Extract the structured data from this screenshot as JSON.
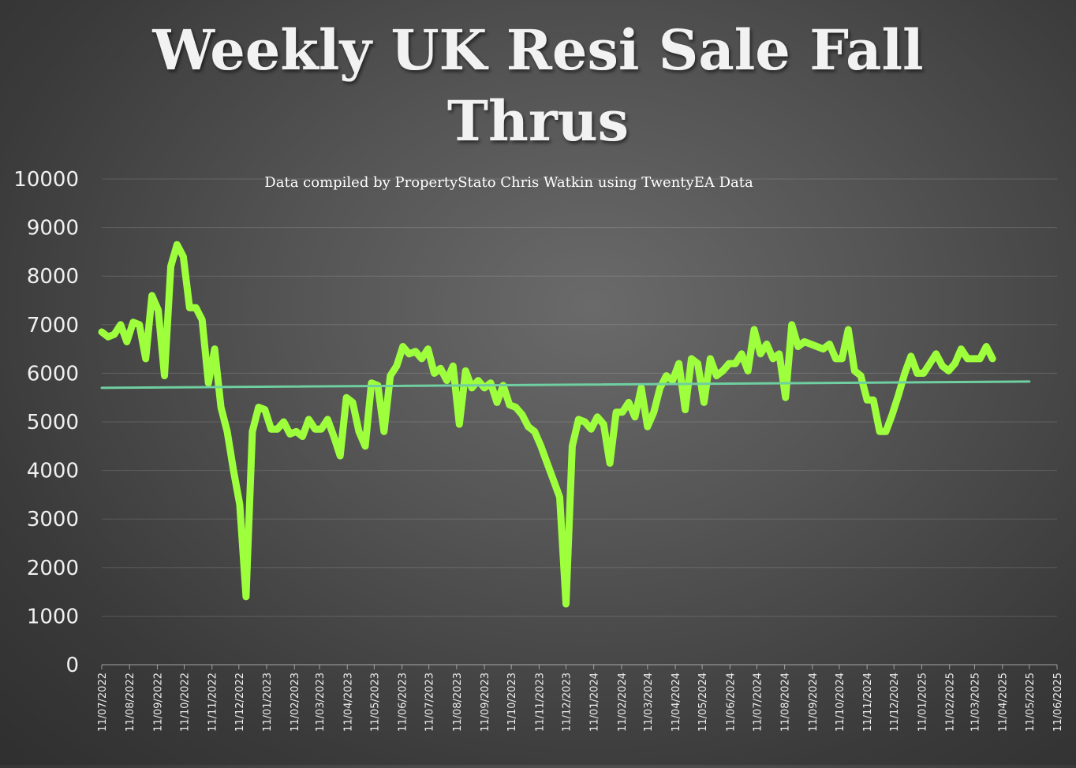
{
  "chart_data": {
    "type": "line",
    "title_lines": [
      "Weekly UK Resi Sale Fall",
      "Thrus"
    ],
    "subtitle": "Data compiled by PropertyStato Chris Watkin using TwentyEA Data",
    "ylim": [
      0,
      10000
    ],
    "y_ticks": [
      "0",
      "1000",
      "2000",
      "3000",
      "4000",
      "5000",
      "6000",
      "7000",
      "8000",
      "9000",
      "10000"
    ],
    "x_start": "2022-07-11",
    "x_end": "2025-06-11",
    "x_ticks": [
      "11/07/2022",
      "11/08/2022",
      "11/09/2022",
      "11/10/2022",
      "11/11/2022",
      "11/12/2022",
      "11/01/2023",
      "11/02/2023",
      "11/03/2023",
      "11/04/2023",
      "11/05/2023",
      "11/06/2023",
      "11/07/2023",
      "11/08/2023",
      "11/09/2023",
      "11/10/2023",
      "11/11/2023",
      "11/12/2023",
      "11/01/2024",
      "11/02/2024",
      "11/03/2024",
      "11/04/2024",
      "11/05/2024",
      "11/06/2024",
      "11/07/2024",
      "11/08/2024",
      "11/09/2024",
      "11/10/2024",
      "11/11/2024",
      "11/12/2024",
      "11/01/2025",
      "11/02/2025",
      "11/03/2025",
      "11/04/2025",
      "11/05/2025",
      "11/06/2025"
    ],
    "grid": true,
    "legend": "none",
    "series": [
      {
        "kind": "weekly",
        "color": "#9eff3d",
        "points": [
          [
            "2022-07-11",
            6850
          ],
          [
            "2022-07-18",
            6750
          ],
          [
            "2022-07-25",
            6800
          ],
          [
            "2022-08-01",
            7000
          ],
          [
            "2022-08-08",
            6650
          ],
          [
            "2022-08-15",
            7050
          ],
          [
            "2022-08-22",
            7000
          ],
          [
            "2022-08-29",
            6300
          ],
          [
            "2022-09-05",
            7600
          ],
          [
            "2022-09-12",
            7300
          ],
          [
            "2022-09-19",
            5950
          ],
          [
            "2022-09-26",
            8200
          ],
          [
            "2022-10-03",
            8650
          ],
          [
            "2022-10-10",
            8400
          ],
          [
            "2022-10-17",
            7350
          ],
          [
            "2022-10-24",
            7350
          ],
          [
            "2022-10-31",
            7100
          ],
          [
            "2022-11-07",
            5800
          ],
          [
            "2022-11-14",
            6500
          ],
          [
            "2022-11-21",
            5300
          ],
          [
            "2022-11-28",
            4800
          ],
          [
            "2022-12-05",
            4000
          ],
          [
            "2022-12-12",
            3300
          ],
          [
            "2022-12-19",
            1400
          ],
          [
            "2022-12-26",
            4800
          ],
          [
            "2023-01-02",
            5300
          ],
          [
            "2023-01-09",
            5250
          ],
          [
            "2023-01-16",
            4850
          ],
          [
            "2023-01-23",
            4850
          ],
          [
            "2023-01-30",
            5000
          ],
          [
            "2023-02-06",
            4750
          ],
          [
            "2023-02-13",
            4800
          ],
          [
            "2023-02-20",
            4700
          ],
          [
            "2023-02-27",
            5050
          ],
          [
            "2023-03-06",
            4850
          ],
          [
            "2023-03-13",
            4850
          ],
          [
            "2023-03-20",
            5050
          ],
          [
            "2023-03-27",
            4700
          ],
          [
            "2023-04-03",
            4300
          ],
          [
            "2023-04-10",
            5500
          ],
          [
            "2023-04-17",
            5400
          ],
          [
            "2023-04-24",
            4800
          ],
          [
            "2023-05-01",
            4500
          ],
          [
            "2023-05-08",
            5800
          ],
          [
            "2023-05-15",
            5750
          ],
          [
            "2023-05-22",
            4800
          ],
          [
            "2023-05-29",
            5950
          ],
          [
            "2023-06-05",
            6150
          ],
          [
            "2023-06-12",
            6550
          ],
          [
            "2023-06-19",
            6400
          ],
          [
            "2023-06-26",
            6450
          ],
          [
            "2023-07-03",
            6300
          ],
          [
            "2023-07-10",
            6500
          ],
          [
            "2023-07-17",
            6000
          ],
          [
            "2023-07-24",
            6100
          ],
          [
            "2023-07-31",
            5850
          ],
          [
            "2023-08-07",
            6150
          ],
          [
            "2023-08-14",
            4950
          ],
          [
            "2023-08-21",
            6050
          ],
          [
            "2023-08-28",
            5700
          ],
          [
            "2023-09-04",
            5850
          ],
          [
            "2023-09-11",
            5700
          ],
          [
            "2023-09-18",
            5800
          ],
          [
            "2023-09-25",
            5400
          ],
          [
            "2023-10-02",
            5750
          ],
          [
            "2023-10-09",
            5350
          ],
          [
            "2023-10-16",
            5300
          ],
          [
            "2023-10-23",
            5150
          ],
          [
            "2023-10-30",
            4900
          ],
          [
            "2023-11-06",
            4800
          ],
          [
            "2023-11-13",
            4500
          ],
          [
            "2023-11-20",
            4150
          ],
          [
            "2023-11-27",
            3800
          ],
          [
            "2023-12-04",
            3450
          ],
          [
            "2023-12-11",
            1250
          ],
          [
            "2023-12-18",
            4500
          ],
          [
            "2023-12-25",
            5050
          ],
          [
            "2024-01-01",
            5000
          ],
          [
            "2024-01-08",
            4850
          ],
          [
            "2024-01-15",
            5100
          ],
          [
            "2024-01-22",
            4950
          ],
          [
            "2024-01-29",
            4150
          ],
          [
            "2024-02-05",
            5200
          ],
          [
            "2024-02-12",
            5200
          ],
          [
            "2024-02-19",
            5400
          ],
          [
            "2024-02-26",
            5100
          ],
          [
            "2024-03-04",
            5700
          ],
          [
            "2024-03-11",
            4900
          ],
          [
            "2024-03-18",
            5200
          ],
          [
            "2024-03-25",
            5700
          ],
          [
            "2024-04-01",
            5950
          ],
          [
            "2024-04-08",
            5850
          ],
          [
            "2024-04-15",
            6200
          ],
          [
            "2024-04-22",
            5250
          ],
          [
            "2024-04-29",
            6300
          ],
          [
            "2024-05-06",
            6200
          ],
          [
            "2024-05-13",
            5400
          ],
          [
            "2024-05-20",
            6300
          ],
          [
            "2024-05-27",
            5950
          ],
          [
            "2024-06-03",
            6050
          ],
          [
            "2024-06-10",
            6200
          ],
          [
            "2024-06-17",
            6200
          ],
          [
            "2024-06-24",
            6400
          ],
          [
            "2024-07-01",
            6050
          ],
          [
            "2024-07-08",
            6900
          ],
          [
            "2024-07-15",
            6400
          ],
          [
            "2024-07-22",
            6600
          ],
          [
            "2024-07-29",
            6300
          ],
          [
            "2024-08-05",
            6400
          ],
          [
            "2024-08-12",
            5500
          ],
          [
            "2024-08-19",
            7000
          ],
          [
            "2024-08-26",
            6550
          ],
          [
            "2024-09-02",
            6650
          ],
          [
            "2024-09-09",
            6600
          ],
          [
            "2024-09-16",
            6550
          ],
          [
            "2024-09-23",
            6500
          ],
          [
            "2024-09-30",
            6600
          ],
          [
            "2024-10-07",
            6300
          ],
          [
            "2024-10-14",
            6300
          ],
          [
            "2024-10-21",
            6900
          ],
          [
            "2024-10-28",
            6050
          ],
          [
            "2024-11-04",
            5950
          ],
          [
            "2024-11-11",
            5450
          ],
          [
            "2024-11-18",
            5450
          ],
          [
            "2024-11-25",
            4800
          ],
          [
            "2024-12-02",
            4800
          ],
          [
            "2024-12-09",
            5150
          ],
          [
            "2024-12-16",
            5550
          ],
          [
            "2024-12-23",
            6000
          ],
          [
            "2024-12-30",
            6350
          ],
          [
            "2025-01-06",
            6000
          ],
          [
            "2025-01-13",
            6000
          ],
          [
            "2025-01-20",
            6200
          ],
          [
            "2025-01-27",
            6400
          ],
          [
            "2025-02-03",
            6150
          ],
          [
            "2025-02-10",
            6050
          ],
          [
            "2025-02-17",
            6200
          ],
          [
            "2025-02-24",
            6500
          ],
          [
            "2025-03-03",
            6300
          ],
          [
            "2025-03-10",
            6300
          ],
          [
            "2025-03-17",
            6300
          ],
          [
            "2025-03-24",
            6550
          ],
          [
            "2025-03-31",
            6300
          ]
        ]
      },
      {
        "kind": "trendline",
        "color": "#6fcfa0",
        "points": [
          [
            "2022-07-11",
            5700
          ],
          [
            "2025-05-11",
            5830
          ]
        ]
      }
    ]
  }
}
